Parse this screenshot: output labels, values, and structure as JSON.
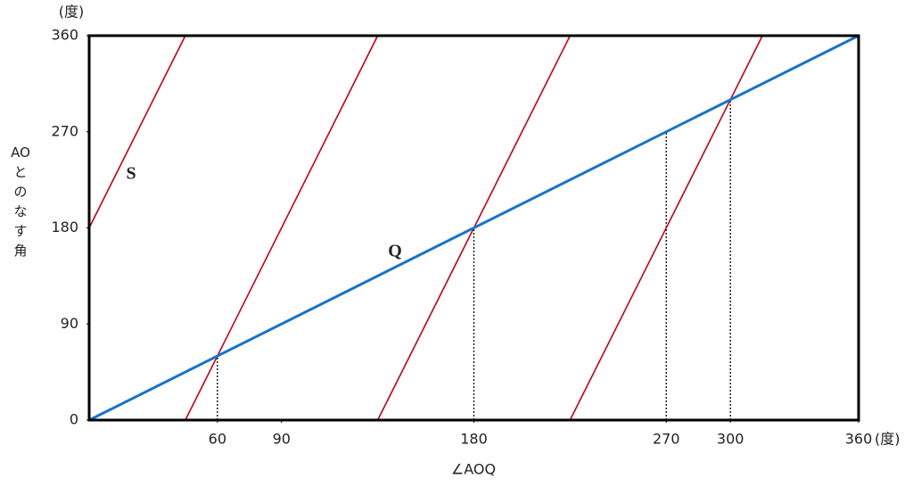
{
  "chart_data": {
    "type": "line",
    "xlabel": "∠AOQ",
    "ylabel": "AOとのなす角",
    "x_unit": "(度)",
    "y_unit": "(度)",
    "xlim": [
      0,
      360
    ],
    "ylim": [
      0,
      360
    ],
    "xticks": [
      60,
      90,
      180,
      270,
      300,
      360
    ],
    "yticks": [
      0,
      90,
      180,
      270,
      360
    ],
    "series": [
      {
        "name": "Q",
        "color": "#1874c4",
        "x": [
          0,
          360
        ],
        "values": [
          0,
          360
        ]
      },
      {
        "name": "S",
        "color": "#c00018",
        "x": [
          0,
          45,
          45,
          45,
          135,
          135,
          135,
          225,
          225,
          225,
          315
        ],
        "values": [
          180,
          360,
          null,
          0,
          360,
          null,
          0,
          360,
          null,
          0,
          360
        ]
      }
    ],
    "guides": {
      "x": [
        60,
        180,
        270,
        300
      ],
      "values": [
        60,
        180,
        270,
        300
      ]
    }
  }
}
